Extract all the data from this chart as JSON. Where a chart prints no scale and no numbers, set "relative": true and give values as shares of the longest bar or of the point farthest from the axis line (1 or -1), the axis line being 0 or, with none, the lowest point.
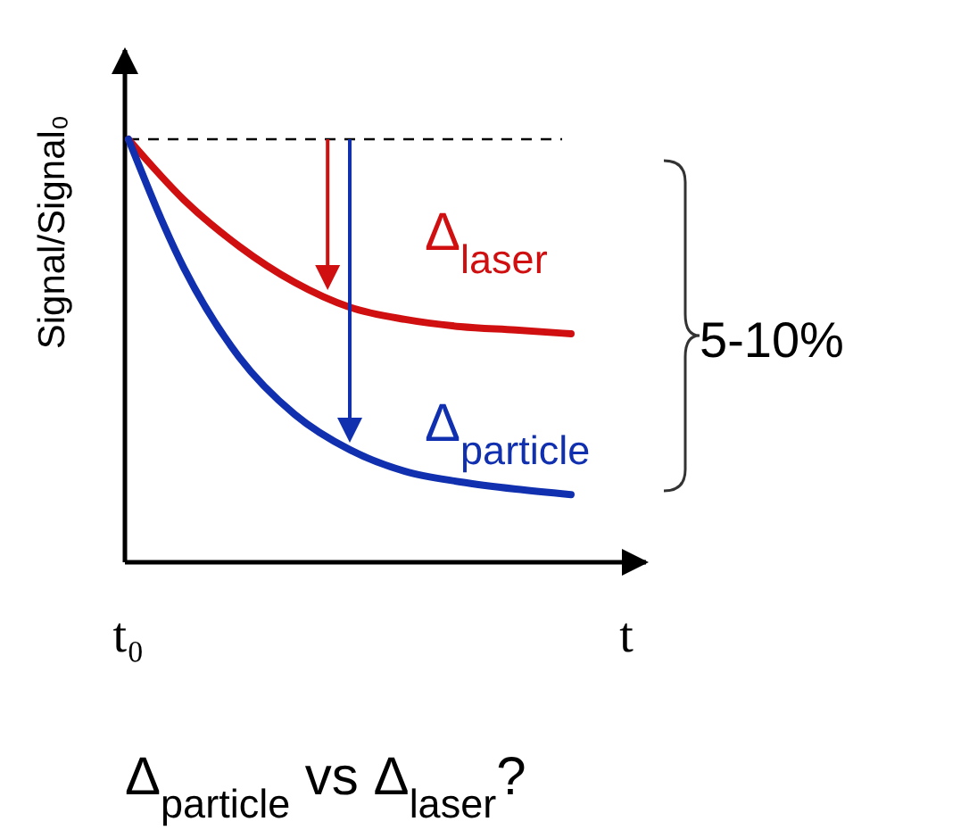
{
  "chart_data": {
    "type": "line",
    "relative": true,
    "ylabel": "Signal/Signal₀",
    "categories": [
      "t₀",
      null,
      null,
      null,
      null,
      null,
      null,
      null,
      null,
      "t"
    ],
    "series": [
      {
        "color": "#d01010",
        "values": [
          1,
          0.857,
          0.747,
          0.662,
          0.603,
          0.574,
          0.557,
          0.549,
          0.54,
          null
        ]
      },
      {
        "color": "#1030b0",
        "values": [
          1,
          0.696,
          0.485,
          0.35,
          0.266,
          0.215,
          0.19,
          0.173,
          0.16,
          null
        ]
      }
    ],
    "ref_lines": [
      {
        "axis": "y",
        "value": 1,
        "line_style": "dashed",
        "color": "#000000"
      }
    ],
    "annotations": [
      "Δ$_{laser}$",
      "Δ$_{particle}$",
      "5-10%",
      "Δ$_{particle}$ vs Δ$_{laser}$?"
    ],
    "line_style": "solid",
    "marker": "none",
    "grid": false
  }
}
